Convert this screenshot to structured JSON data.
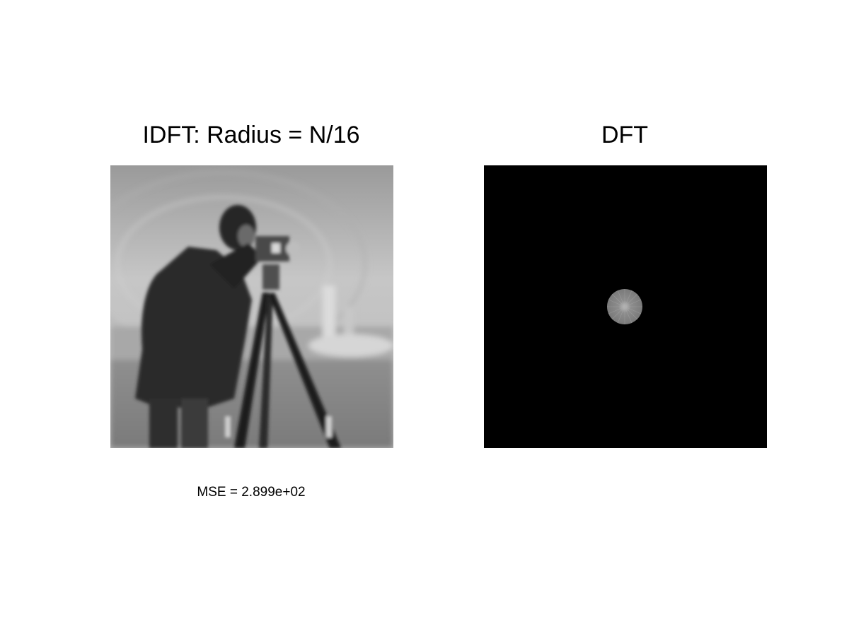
{
  "figure": {
    "left_panel": {
      "title": "IDFT: Radius = N/16",
      "caption": "MSE = 2.899e+02"
    },
    "right_panel": {
      "title": "DFT"
    }
  },
  "colors": {
    "background": "#ffffff",
    "dft_background": "#000000",
    "dft_spot": "#8a8a8a"
  }
}
